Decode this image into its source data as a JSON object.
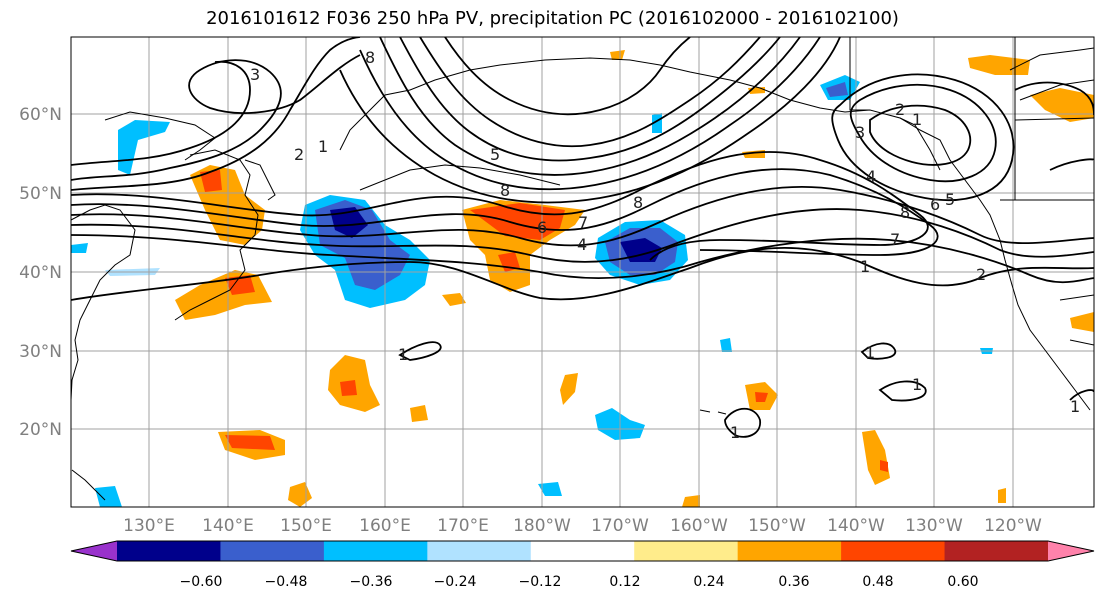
{
  "title": "2016101612 F036 250 hPa PV, precipitation PC (2016102000 - 2016102100)",
  "lat_labels": [
    "60°N",
    "50°N",
    "40°N",
    "30°N",
    "20°N"
  ],
  "lon_labels": [
    "130°E",
    "140°E",
    "150°E",
    "160°E",
    "170°E",
    "180°W",
    "170°W",
    "160°W",
    "150°W",
    "140°W",
    "130°W",
    "120°W"
  ],
  "colorbar": {
    "colors": [
      "#9932cc",
      "#00008b",
      "#3a5fcd",
      "#00bfff",
      "#b0e2ff",
      "#ffffff",
      "#ffec8b",
      "#ffa500",
      "#ff4500",
      "#b22222",
      "#ff82ab"
    ],
    "tick_labels": [
      "−0.60",
      "−0.48",
      "−0.36",
      "−0.24",
      "−0.12",
      "0.12",
      "0.24",
      "0.36",
      "0.48",
      "0.60"
    ]
  },
  "contour_labels": [
    "3",
    "8",
    "2",
    "1",
    "8",
    "5",
    "6",
    "4",
    "7",
    "8",
    "3",
    "2",
    "1",
    "4",
    "8",
    "6",
    "5",
    "7",
    "1",
    "1",
    "1",
    "1",
    "1",
    "1",
    "2"
  ]
}
